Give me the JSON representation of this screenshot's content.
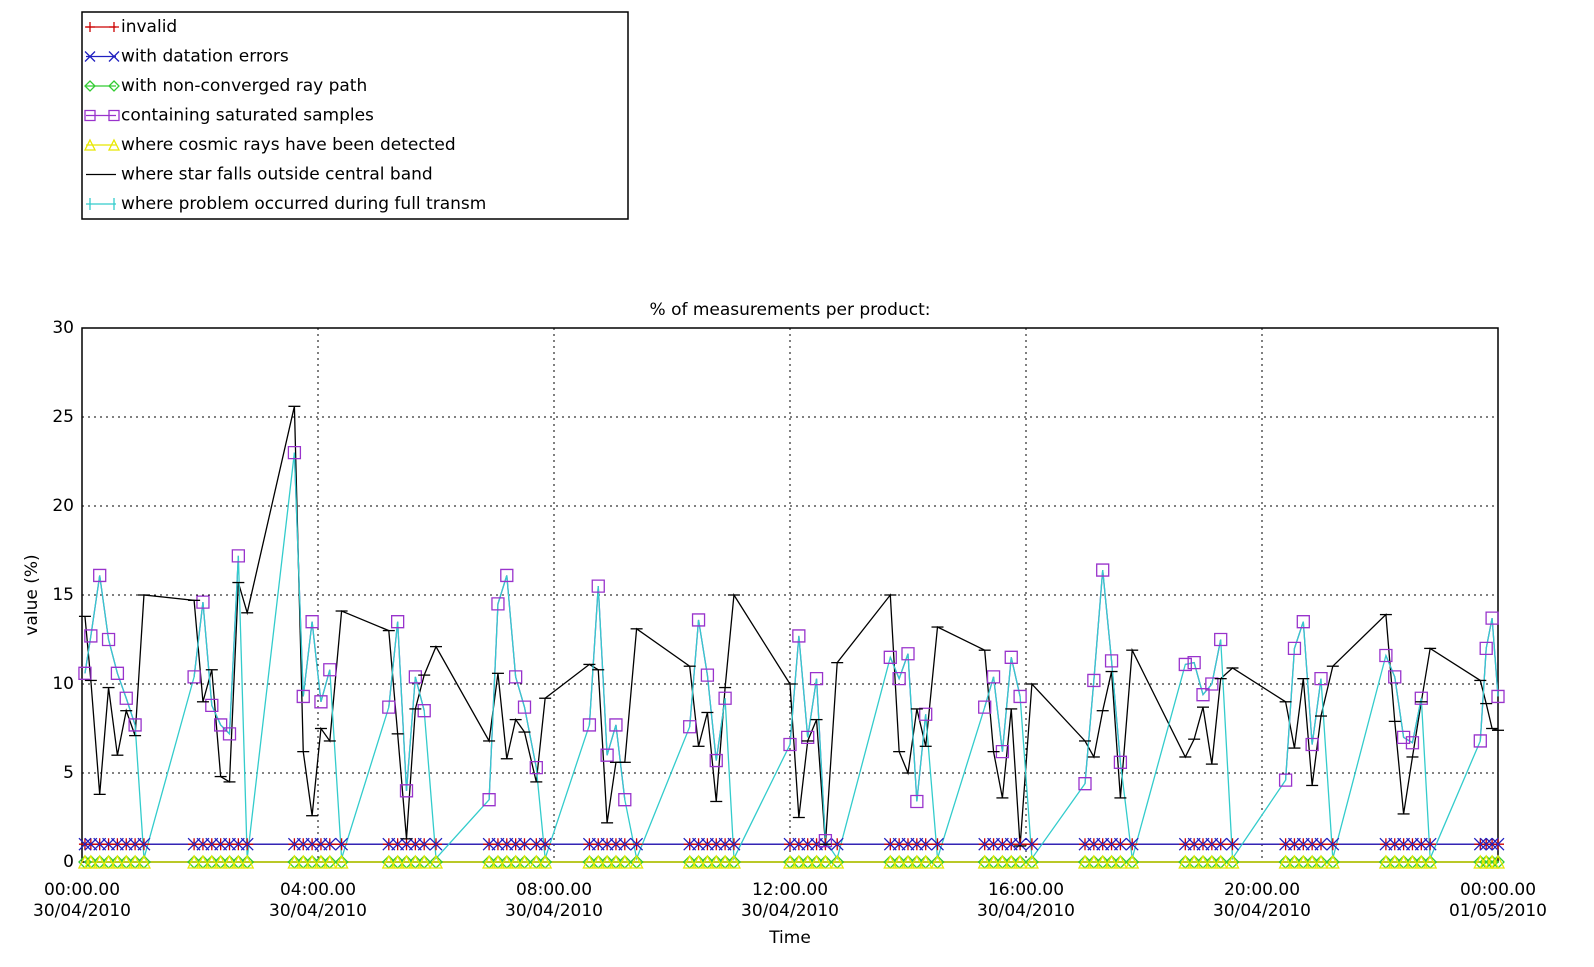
{
  "chart_data": {
    "type": "line",
    "title": "% of measurements per product:",
    "x_label": "Time",
    "y_label": "value (%)",
    "xlim": [
      0,
      24
    ],
    "xticks": [
      {
        "value": 0,
        "label": "00:00.00\n30/04/2010"
      },
      {
        "value": 4,
        "label": "04:00.00\n30/04/2010"
      },
      {
        "value": 8,
        "label": "08:00.00\n30/04/2010"
      },
      {
        "value": 12,
        "label": "12:00.00\n30/04/2010"
      },
      {
        "value": 16,
        "label": "16:00.00\n30/04/2010"
      },
      {
        "value": 20,
        "label": "20:00.00\n30/04/2010"
      },
      {
        "value": 24,
        "label": "00:00.00\n01/05/2010"
      }
    ],
    "ylim": [
      0,
      30
    ],
    "yticks": [
      0,
      5,
      10,
      15,
      20,
      25,
      30
    ],
    "grid": true,
    "legend": "top-left",
    "x": [
      0.05,
      0.15,
      0.3,
      0.45,
      0.6,
      0.75,
      0.9,
      1.05,
      1.9,
      2.05,
      2.2,
      2.35,
      2.5,
      2.65,
      2.8,
      3.6,
      3.75,
      3.9,
      4.05,
      4.2,
      4.4,
      5.2,
      5.35,
      5.5,
      5.65,
      5.8,
      6.0,
      6.9,
      7.05,
      7.2,
      7.35,
      7.5,
      7.7,
      7.85,
      8.6,
      8.75,
      8.9,
      9.05,
      9.2,
      9.4,
      10.3,
      10.45,
      10.6,
      10.75,
      10.9,
      11.05,
      12.0,
      12.15,
      12.3,
      12.45,
      12.6,
      12.8,
      13.7,
      13.85,
      14.0,
      14.15,
      14.3,
      14.5,
      15.3,
      15.45,
      15.6,
      15.75,
      15.9,
      16.1,
      17.0,
      17.15,
      17.3,
      17.45,
      17.6,
      17.8,
      18.7,
      18.85,
      19.0,
      19.15,
      19.3,
      19.5,
      20.4,
      20.55,
      20.7,
      20.85,
      21.0,
      21.2,
      22.1,
      22.25,
      22.4,
      22.55,
      22.7,
      22.85,
      23.7,
      23.8,
      23.9,
      24.0
    ],
    "series": [
      {
        "name": "invalid",
        "color": "#cc0000",
        "marker": "plus",
        "values": [
          1,
          1,
          1,
          1,
          1,
          1,
          1,
          1,
          1,
          1,
          1,
          1,
          1,
          1,
          1,
          1,
          1,
          1,
          1,
          1,
          1,
          1,
          1,
          1,
          1,
          1,
          1,
          1,
          1,
          1,
          1,
          1,
          1,
          1,
          1,
          1,
          1,
          1,
          1,
          1,
          1,
          1,
          1,
          1,
          1,
          1,
          1,
          1,
          1,
          1,
          1,
          1,
          1,
          1,
          1,
          1,
          1,
          1,
          1,
          1,
          1,
          1,
          1,
          1,
          1,
          1,
          1,
          1,
          1,
          1,
          1,
          1,
          1,
          1,
          1,
          1,
          1,
          1,
          1,
          1,
          1,
          1,
          1,
          1,
          1,
          1,
          1,
          1,
          1,
          1,
          1,
          1
        ]
      },
      {
        "name": "with datation errors",
        "color": "#2020c0",
        "marker": "x",
        "values": [
          1,
          1,
          1,
          1,
          1,
          1,
          1,
          1,
          1,
          1,
          1,
          1,
          1,
          1,
          1,
          1,
          1,
          1,
          1,
          1,
          1,
          1,
          1,
          1,
          1,
          1,
          1,
          1,
          1,
          1,
          1,
          1,
          1,
          1,
          1,
          1,
          1,
          1,
          1,
          1,
          1,
          1,
          1,
          1,
          1,
          1,
          1,
          1,
          1,
          1,
          1,
          1,
          1,
          1,
          1,
          1,
          1,
          1,
          1,
          1,
          1,
          1,
          1,
          1,
          1,
          1,
          1,
          1,
          1,
          1,
          1,
          1,
          1,
          1,
          1,
          1,
          1,
          1,
          1,
          1,
          1,
          1,
          1,
          1,
          1,
          1,
          1,
          1,
          1,
          1,
          1,
          1
        ]
      },
      {
        "name": "with non-converged ray path",
        "color": "#33cc33",
        "marker": "diamond",
        "values": [
          0,
          0,
          0,
          0,
          0,
          0,
          0,
          0,
          0,
          0,
          0,
          0,
          0,
          0,
          0,
          0,
          0,
          0,
          0,
          0,
          0,
          0,
          0,
          0,
          0,
          0,
          0,
          0,
          0,
          0,
          0,
          0,
          0,
          0,
          0,
          0,
          0,
          0,
          0,
          0,
          0,
          0,
          0,
          0,
          0,
          0,
          0,
          0,
          0,
          0,
          0,
          0,
          0,
          0,
          0,
          0,
          0,
          0,
          0,
          0,
          0,
          0,
          0,
          0,
          0,
          0,
          0,
          0,
          0,
          0,
          0,
          0,
          0,
          0,
          0,
          0,
          0,
          0,
          0,
          0,
          0,
          0,
          0,
          0,
          0,
          0,
          0,
          0,
          0,
          0,
          0,
          0
        ]
      },
      {
        "name": "containing saturated samples",
        "color": "#9933cc",
        "marker": "square",
        "values": [
          10.6,
          12.7,
          16.1,
          12.5,
          10.6,
          9.2,
          7.7,
          null,
          10.4,
          14.6,
          8.8,
          7.7,
          7.2,
          17.2,
          null,
          23.0,
          9.3,
          13.5,
          9.0,
          10.8,
          null,
          8.7,
          13.5,
          4.0,
          10.4,
          8.5,
          null,
          3.5,
          14.5,
          16.1,
          10.4,
          8.7,
          5.3,
          null,
          7.7,
          15.5,
          6.0,
          7.7,
          3.5,
          null,
          7.6,
          13.6,
          10.5,
          5.7,
          9.2,
          null,
          6.6,
          12.7,
          7.0,
          10.3,
          1.2,
          null,
          11.5,
          10.3,
          11.7,
          3.4,
          8.3,
          null,
          8.7,
          10.4,
          6.2,
          11.5,
          9.3,
          null,
          4.4,
          10.2,
          16.4,
          11.3,
          5.6,
          null,
          11.1,
          11.2,
          9.4,
          10.0,
          12.5,
          null,
          4.6,
          12.0,
          13.5,
          6.6,
          10.3,
          null,
          11.6,
          10.4,
          7.0,
          6.7,
          9.2,
          null,
          6.8,
          12.0,
          13.7,
          9.3
        ]
      },
      {
        "name": "where cosmic rays have been detected",
        "color": "#e8e800",
        "marker": "triangle",
        "values": [
          0,
          0,
          0,
          0,
          0,
          0,
          0,
          0,
          0,
          0,
          0,
          0,
          0,
          0,
          0,
          0,
          0,
          0,
          0,
          0,
          0,
          0,
          0,
          0,
          0,
          0,
          0,
          0,
          0,
          0,
          0,
          0,
          0,
          0,
          0,
          0,
          0,
          0,
          0,
          0,
          0,
          0,
          0,
          0,
          0,
          0,
          0,
          0,
          0,
          0,
          0,
          0,
          0,
          0,
          0,
          0,
          0,
          0,
          0,
          0,
          0,
          0,
          0,
          0,
          0,
          0,
          0,
          0,
          0,
          0,
          0,
          0,
          0,
          0,
          0,
          0,
          0,
          0,
          0,
          0,
          0,
          0,
          0,
          0,
          0,
          0,
          0,
          0,
          0,
          0,
          0,
          0
        ]
      },
      {
        "name": "where star falls outside central band",
        "color": "#000000",
        "marker": "hbar",
        "values": [
          13.8,
          10.2,
          3.8,
          9.8,
          6.0,
          8.5,
          7.1,
          15.0,
          14.7,
          9.0,
          10.8,
          4.8,
          4.5,
          15.7,
          14.0,
          25.6,
          6.2,
          2.6,
          7.5,
          6.8,
          14.1,
          13.0,
          7.2,
          1.3,
          8.6,
          10.5,
          12.1,
          6.8,
          10.6,
          5.8,
          8.0,
          7.3,
          4.5,
          9.2,
          11.1,
          10.8,
          2.2,
          5.6,
          5.6,
          13.1,
          11.0,
          6.5,
          8.4,
          3.4,
          9.8,
          15.0,
          10.0,
          2.5,
          6.8,
          8.0,
          1.0,
          11.2,
          15.0,
          6.2,
          5.0,
          8.6,
          6.5,
          13.2,
          11.9,
          6.2,
          3.6,
          8.6,
          0.9,
          10.0,
          6.8,
          5.9,
          8.5,
          10.7,
          3.6,
          11.9,
          5.9,
          6.9,
          8.7,
          5.5,
          10.3,
          10.9,
          9.0,
          6.4,
          10.3,
          4.3,
          8.2,
          11.0,
          13.9,
          7.9,
          2.7,
          5.9,
          9.0,
          12.0,
          10.2,
          8.9,
          7.5,
          7.4
        ]
      },
      {
        "name": "where problem occurred during full transm",
        "color": "#33cccc",
        "marker": "vbar",
        "values": [
          10.6,
          12.7,
          16.1,
          12.5,
          10.6,
          9.2,
          7.7,
          0.2,
          10.4,
          14.6,
          8.8,
          7.7,
          7.2,
          17.2,
          0.2,
          23.0,
          9.3,
          13.5,
          9.0,
          10.8,
          0.2,
          8.7,
          13.5,
          4.0,
          10.4,
          8.5,
          0.2,
          3.5,
          14.5,
          16.1,
          10.4,
          8.7,
          5.3,
          0.2,
          7.7,
          15.5,
          6.0,
          7.7,
          3.5,
          0.2,
          7.6,
          13.6,
          10.5,
          5.7,
          9.2,
          0.2,
          6.6,
          12.7,
          7.0,
          10.3,
          1.2,
          0.2,
          11.5,
          10.3,
          11.7,
          3.4,
          8.3,
          0.2,
          8.7,
          10.4,
          6.2,
          11.5,
          9.3,
          0.2,
          4.4,
          10.2,
          16.4,
          11.3,
          5.6,
          0.2,
          11.1,
          11.2,
          9.4,
          10.0,
          12.5,
          0.2,
          4.6,
          12.0,
          13.5,
          6.6,
          10.3,
          0.2,
          11.6,
          10.4,
          7.0,
          6.7,
          9.2,
          0.2,
          6.8,
          12.0,
          13.7,
          9.3
        ]
      }
    ]
  }
}
